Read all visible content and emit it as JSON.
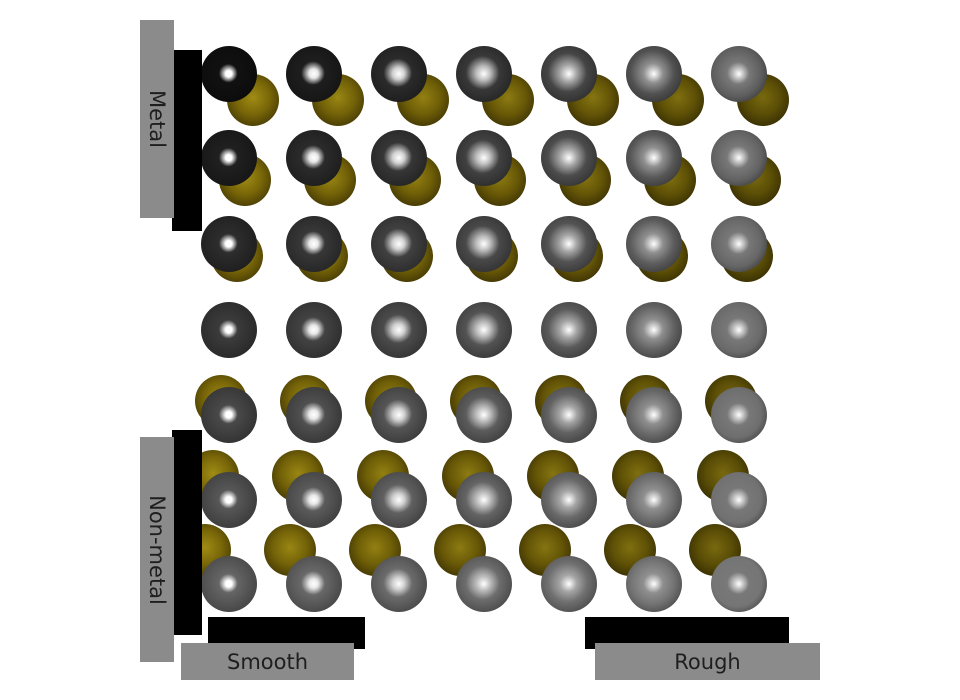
{
  "labels": {
    "metal": "Metal",
    "non_metal": "Non-metal",
    "smooth": "Smooth",
    "rough": "Rough"
  },
  "grid": {
    "rows": 7,
    "cols": 7,
    "metallic_by_row": [
      1.0,
      0.83,
      0.67,
      0.5,
      0.33,
      0.17,
      0.0
    ],
    "roughness_by_col": [
      0.0,
      0.17,
      0.33,
      0.5,
      0.67,
      0.83,
      1.0
    ]
  },
  "colors": {
    "background": "#ffffff",
    "label_bg": "#8b8b8b",
    "label_text": "#1e1e1e",
    "bracket": "#000000",
    "sphere_gray": "#5a5a5a",
    "sphere_gold": "#7a6a00"
  }
}
